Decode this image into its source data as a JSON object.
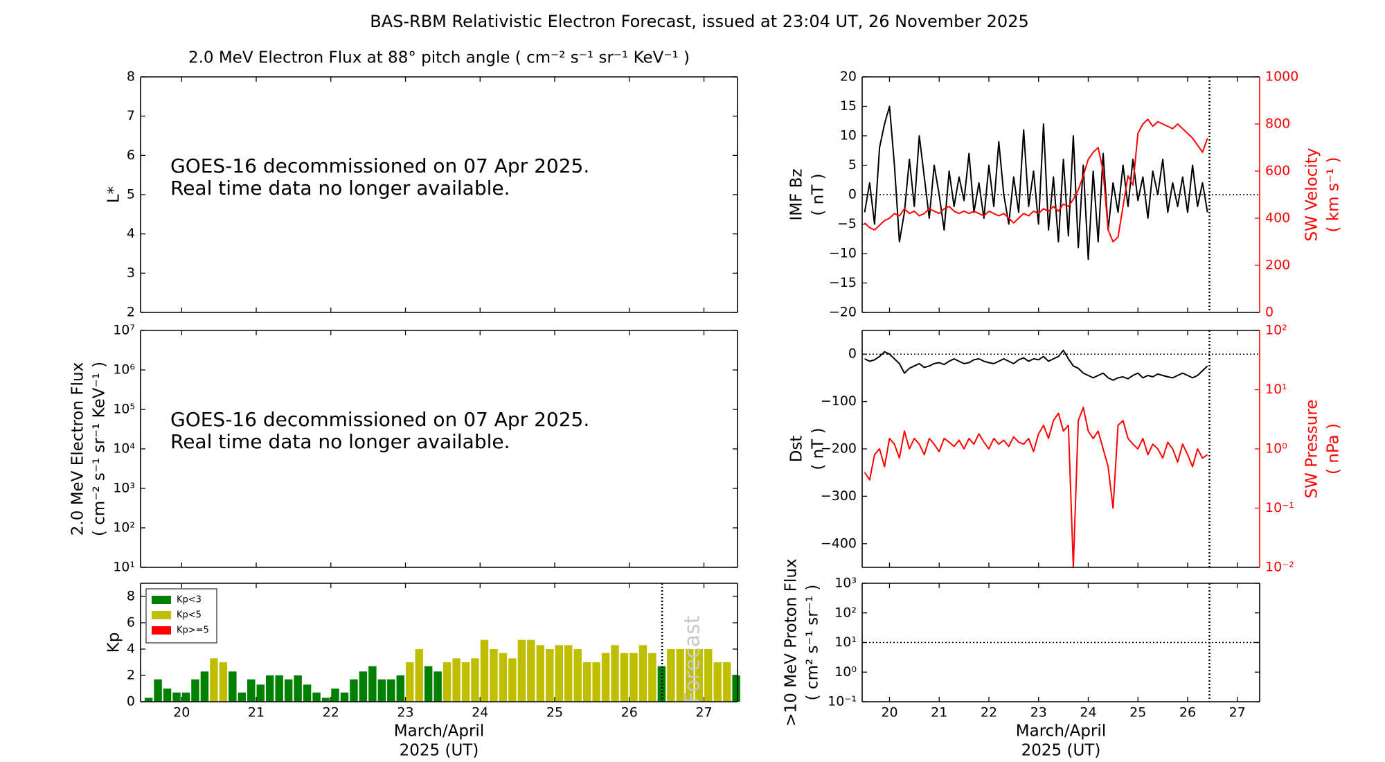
{
  "title": "BAS-RBM Relativistic Electron Forecast, issued at 23:04 UT, 26 November 2025",
  "chart_data": [
    {
      "type": "heatmap",
      "title": "2.0 MeV Electron Flux at 88° pitch angle ( cm⁻² s⁻¹ sr⁻¹ KeV⁻¹ )",
      "ylabel": [
        "L*"
      ],
      "xlim": [
        19.45,
        27.45
      ],
      "xticks": [
        20,
        21,
        22,
        23,
        24,
        25,
        26,
        27
      ],
      "ylim": [
        2,
        8
      ],
      "yticks": [
        2,
        3,
        4,
        5,
        6,
        7,
        8
      ],
      "annotation": [
        "GOES-16 decommissioned on 07 Apr 2025.",
        "Real time data no longer available."
      ]
    },
    {
      "type": "line",
      "ylabel": [
        "2.0 MeV Electron Flux",
        "( cm⁻² s⁻¹ sr⁻¹ KeV⁻¹ )"
      ],
      "xlim": [
        19.45,
        27.45
      ],
      "xticks": [
        20,
        21,
        22,
        23,
        24,
        25,
        26,
        27
      ],
      "ylim": [
        10,
        10000000
      ],
      "ylog": true,
      "yticks": [
        {
          "value": 10,
          "label": "10¹"
        },
        {
          "value": 100,
          "label": "10²"
        },
        {
          "value": 1000,
          "label": "10³"
        },
        {
          "value": 10000,
          "label": "10⁴"
        },
        {
          "value": 100000,
          "label": "10⁵"
        },
        {
          "value": 1000000,
          "label": "10⁶"
        },
        {
          "value": 10000000,
          "label": "10⁷"
        }
      ],
      "annotation": [
        "GOES-16 decommissioned on 07 Apr 2025.",
        "Real time data no longer available."
      ]
    },
    {
      "type": "bar",
      "ylabel": [
        "Kp"
      ],
      "xlabel": [
        "March/April",
        "2025 (UT)"
      ],
      "xlim": [
        19.45,
        27.45
      ],
      "xticks": [
        20,
        21,
        22,
        23,
        24,
        25,
        26,
        27
      ],
      "ylim": [
        0,
        9
      ],
      "yticks": [
        0,
        2,
        4,
        6,
        8
      ],
      "legend": "upper left",
      "forecast_at": 26.44,
      "forecast_label": "Forecast",
      "series": [
        {
          "name": "Kp<3",
          "color": "#008000",
          "x": [
            19.5,
            19.625,
            19.75,
            19.875,
            20,
            20.125,
            20.25,
            20.625,
            20.75,
            20.875,
            21,
            21.125,
            21.25,
            21.375,
            21.5,
            21.625,
            21.75,
            21.875,
            22,
            22.125,
            22.25,
            22.375,
            22.5,
            22.625,
            22.75,
            22.875,
            23.25,
            23.375,
            26.375,
            27.375
          ],
          "values": [
            0.3,
            1.7,
            1.0,
            0.7,
            0.7,
            1.7,
            2.3,
            2.3,
            0.7,
            1.7,
            1.3,
            2.0,
            2.0,
            1.7,
            2.0,
            1.3,
            0.7,
            0.3,
            1.0,
            0.7,
            1.7,
            2.3,
            2.7,
            1.7,
            1.7,
            2.0,
            2.7,
            2.3,
            2.7,
            2.0
          ]
        },
        {
          "name": "Kp<5",
          "color": "#bfbf00",
          "x": [
            20.375,
            20.5,
            23,
            23.125,
            23.5,
            23.625,
            23.75,
            23.875,
            24,
            24.125,
            24.25,
            24.375,
            24.5,
            24.625,
            24.75,
            24.875,
            25,
            25.125,
            25.25,
            25.375,
            25.5,
            25.625,
            25.75,
            25.875,
            26,
            26.125,
            26.25,
            26.5,
            26.625,
            26.75,
            26.875,
            27,
            27.125,
            27.25
          ],
          "values": [
            3.3,
            3.0,
            3.0,
            4.0,
            3.0,
            3.3,
            3.0,
            3.3,
            4.7,
            4.0,
            3.7,
            3.3,
            4.7,
            4.7,
            4.3,
            4.0,
            4.3,
            4.3,
            4.0,
            3.0,
            3.0,
            3.7,
            4.3,
            3.7,
            3.7,
            4.3,
            3.7,
            4.0,
            4.0,
            4.0,
            4.0,
            4.0,
            3.0,
            3.0
          ]
        },
        {
          "name": "Kp>=5",
          "color": "#ff0000",
          "x": [],
          "values": []
        }
      ]
    },
    {
      "type": "line",
      "ylabel": [
        "IMF Bz",
        "( nT )"
      ],
      "y2label": [
        "SW Velocity",
        "( km s⁻¹ )"
      ],
      "xlim": [
        19.45,
        27.45
      ],
      "xticks": [
        20,
        21,
        22,
        23,
        24,
        25,
        26,
        27
      ],
      "ylim": [
        -20,
        20
      ],
      "yticks": [
        {
          "value": -20,
          "label": "−20"
        },
        {
          "value": -15,
          "label": "−15"
        },
        {
          "value": -10,
          "label": "−10"
        },
        {
          "value": -5,
          "label": "−5"
        },
        0,
        5,
        10,
        15,
        20
      ],
      "y2lim": [
        0,
        1000
      ],
      "y2ticks": [
        0,
        200,
        400,
        600,
        800,
        1000
      ],
      "y2color": "#ff0000",
      "reference_lines": [
        0
      ],
      "forecast_at": 26.44,
      "x": [
        19.5,
        19.6,
        19.7,
        19.8,
        19.9,
        20.0,
        20.1,
        20.2,
        20.3,
        20.4,
        20.5,
        20.6,
        20.7,
        20.8,
        20.9,
        21.0,
        21.1,
        21.2,
        21.3,
        21.4,
        21.5,
        21.6,
        21.7,
        21.8,
        21.9,
        22.0,
        22.1,
        22.2,
        22.3,
        22.4,
        22.5,
        22.6,
        22.7,
        22.8,
        22.9,
        23.0,
        23.1,
        23.2,
        23.3,
        23.4,
        23.5,
        23.6,
        23.7,
        23.8,
        23.9,
        24.0,
        24.1,
        24.2,
        24.3,
        24.4,
        24.5,
        24.6,
        24.7,
        24.8,
        24.9,
        25.0,
        25.1,
        25.2,
        25.3,
        25.4,
        25.5,
        25.6,
        25.7,
        25.8,
        25.9,
        26.0,
        26.1,
        26.2,
        26.3,
        26.4
      ],
      "series": [
        {
          "color": "#000000",
          "values": [
            -3,
            2,
            -5,
            8,
            12,
            15,
            5,
            -8,
            -3,
            6,
            -2,
            10,
            3,
            -4,
            5,
            0,
            -6,
            4,
            -2,
            3,
            -1,
            7,
            -3,
            2,
            -4,
            5,
            -2,
            9,
            0,
            -5,
            3,
            -3,
            11,
            -2,
            4,
            -5,
            12,
            -6,
            3,
            -8,
            6,
            -7,
            10,
            -9,
            5,
            -11,
            4,
            -8,
            7,
            -6,
            2,
            -3,
            5,
            -2,
            6,
            -1,
            3,
            -4,
            4,
            0,
            6,
            -3,
            2,
            -2,
            3,
            -3,
            5,
            -2,
            2,
            -3
          ]
        },
        {
          "color": "#ff0000",
          "axis": "y2",
          "values": [
            380,
            360,
            350,
            370,
            390,
            400,
            420,
            410,
            440,
            420,
            430,
            410,
            420,
            440,
            430,
            420,
            440,
            450,
            430,
            420,
            430,
            420,
            430,
            420,
            410,
            430,
            420,
            410,
            420,
            400,
            380,
            400,
            420,
            410,
            430,
            420,
            440,
            430,
            450,
            430,
            460,
            450,
            480,
            520,
            580,
            650,
            680,
            700,
            600,
            350,
            300,
            320,
            450,
            580,
            540,
            760,
            800,
            820,
            790,
            810,
            800,
            790,
            780,
            800,
            780,
            760,
            740,
            710,
            680,
            740
          ]
        }
      ]
    },
    {
      "type": "line",
      "ylabel": [
        "Dst",
        "( nT )"
      ],
      "y2label": [
        "SW Pressure",
        "( nPa )"
      ],
      "xlim": [
        19.45,
        27.45
      ],
      "xticks": [
        20,
        21,
        22,
        23,
        24,
        25,
        26,
        27
      ],
      "ylim": [
        -450,
        50
      ],
      "yticks": [
        {
          "value": -400,
          "label": "−400"
        },
        {
          "value": -300,
          "label": "−300"
        },
        {
          "value": -200,
          "label": "−200"
        },
        {
          "value": -100,
          "label": "−100"
        },
        0
      ],
      "y2lim": [
        0.01,
        100
      ],
      "y2log": true,
      "y2color": "#ff0000",
      "y2ticks": [
        {
          "value": 0.01,
          "label": "10⁻²"
        },
        {
          "value": 0.1,
          "label": "10⁻¹"
        },
        {
          "value": 1,
          "label": "10⁰"
        },
        {
          "value": 10,
          "label": "10¹"
        },
        {
          "value": 100,
          "label": "10²"
        }
      ],
      "reference_lines": [
        0
      ],
      "forecast_at": 26.44,
      "x": [
        19.5,
        19.6,
        19.7,
        19.8,
        19.9,
        20.0,
        20.1,
        20.2,
        20.3,
        20.4,
        20.5,
        20.6,
        20.7,
        20.8,
        20.9,
        21.0,
        21.1,
        21.2,
        21.3,
        21.4,
        21.5,
        21.6,
        21.7,
        21.8,
        21.9,
        22.0,
        22.1,
        22.2,
        22.3,
        22.4,
        22.5,
        22.6,
        22.7,
        22.8,
        22.9,
        23.0,
        23.1,
        23.2,
        23.3,
        23.4,
        23.5,
        23.6,
        23.7,
        23.8,
        23.9,
        24.0,
        24.1,
        24.2,
        24.3,
        24.4,
        24.5,
        24.6,
        24.7,
        24.8,
        24.9,
        25.0,
        25.1,
        25.2,
        25.3,
        25.4,
        25.5,
        25.6,
        25.7,
        25.8,
        25.9,
        26.0,
        26.1,
        26.2,
        26.3,
        26.4
      ],
      "series": [
        {
          "color": "#000000",
          "values": [
            -10,
            -15,
            -12,
            -5,
            5,
            0,
            -10,
            -20,
            -40,
            -30,
            -25,
            -20,
            -28,
            -25,
            -20,
            -18,
            -22,
            -15,
            -10,
            -15,
            -20,
            -18,
            -12,
            -10,
            -15,
            -18,
            -20,
            -15,
            -10,
            -15,
            -20,
            -12,
            -8,
            -15,
            -10,
            -12,
            -5,
            -15,
            -10,
            -5,
            8,
            -10,
            -25,
            -30,
            -40,
            -45,
            -50,
            -45,
            -40,
            -50,
            -55,
            -50,
            -48,
            -52,
            -45,
            -40,
            -50,
            -45,
            -48,
            -42,
            -45,
            -48,
            -50,
            -45,
            -40,
            -45,
            -50,
            -45,
            -35,
            -25
          ]
        },
        {
          "color": "#ff0000",
          "axis": "y2",
          "values": [
            0.4,
            0.3,
            0.8,
            1.0,
            0.5,
            1.5,
            1.2,
            0.7,
            2,
            1.0,
            1.5,
            1.2,
            0.8,
            1.5,
            1.2,
            0.9,
            1.5,
            1.3,
            1.1,
            1.4,
            1.0,
            1.5,
            1.2,
            1.8,
            1.3,
            1.0,
            1.5,
            1.2,
            1.4,
            1.1,
            1.6,
            1.3,
            1.2,
            1.5,
            0.9,
            1.8,
            2.5,
            1.5,
            3,
            4,
            2,
            2.5,
            0.01,
            3,
            5,
            2,
            1.5,
            2.0,
            1.0,
            0.5,
            0.1,
            2.5,
            3,
            1.5,
            1.2,
            1.0,
            1.5,
            0.8,
            1.2,
            1.0,
            0.7,
            1.3,
            1.0,
            0.6,
            1.2,
            0.8,
            0.5,
            1.0,
            0.7,
            0.8
          ]
        }
      ]
    },
    {
      "type": "line",
      "ylabel": [
        ">10 MeV Proton Flux",
        "( cm² s⁻¹ sr⁻¹ )"
      ],
      "xlabel": [
        "March/April",
        "2025 (UT)"
      ],
      "xlim": [
        19.45,
        27.45
      ],
      "xticks": [
        20,
        21,
        22,
        23,
        24,
        25,
        26,
        27
      ],
      "ylim": [
        0.1,
        1000
      ],
      "ylog": true,
      "yticks": [
        {
          "value": 0.1,
          "label": "10⁻¹"
        },
        {
          "value": 1,
          "label": "10⁰"
        },
        {
          "value": 10,
          "label": "10¹"
        },
        {
          "value": 100,
          "label": "10²"
        },
        {
          "value": 1000,
          "label": "10³"
        }
      ],
      "reference_lines": [
        10
      ],
      "forecast_at": 26.44
    }
  ]
}
